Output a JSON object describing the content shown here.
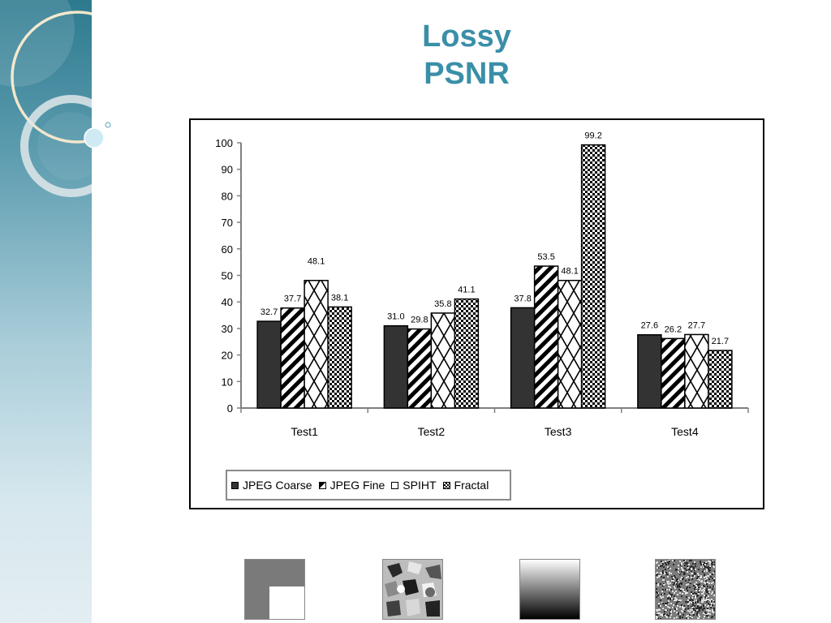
{
  "slide": {
    "title_line1": "Lossy",
    "title_line2": "PSNR"
  },
  "chart_data": {
    "type": "bar",
    "categories": [
      "Test1",
      "Test2",
      "Test3",
      "Test4"
    ],
    "series": [
      {
        "name": "JPEG Coarse",
        "values": [
          32.7,
          31.0,
          37.8,
          27.6
        ],
        "labels": [
          "32.7",
          "31.0",
          "37.8",
          "27.6"
        ]
      },
      {
        "name": "JPEG Fine",
        "values": [
          37.7,
          29.8,
          53.5,
          26.2
        ],
        "labels": [
          "37.7",
          "29.8",
          "53.5",
          "26.2"
        ]
      },
      {
        "name": "SPIHT",
        "values": [
          48.1,
          35.8,
          48.1,
          27.7
        ],
        "labels": [
          "48.1",
          "35.8",
          "48.1",
          "27.7"
        ]
      },
      {
        "name": "Fractal",
        "values": [
          38.1,
          41.1,
          99.2,
          21.7
        ],
        "labels": [
          "38.1",
          "41.1",
          "99.2",
          "21.7"
        ]
      }
    ],
    "yticks": [
      "0",
      "10",
      "20",
      "30",
      "40",
      "50",
      "60",
      "70",
      "80",
      "90",
      "100"
    ],
    "ylim": [
      0,
      100
    ],
    "xlabel": "",
    "ylabel": "",
    "legend_position": "bottom-left"
  },
  "thumbnails": [
    {
      "name": "test1-image"
    },
    {
      "name": "test2-image"
    },
    {
      "name": "test3-image"
    },
    {
      "name": "test4-image"
    }
  ]
}
